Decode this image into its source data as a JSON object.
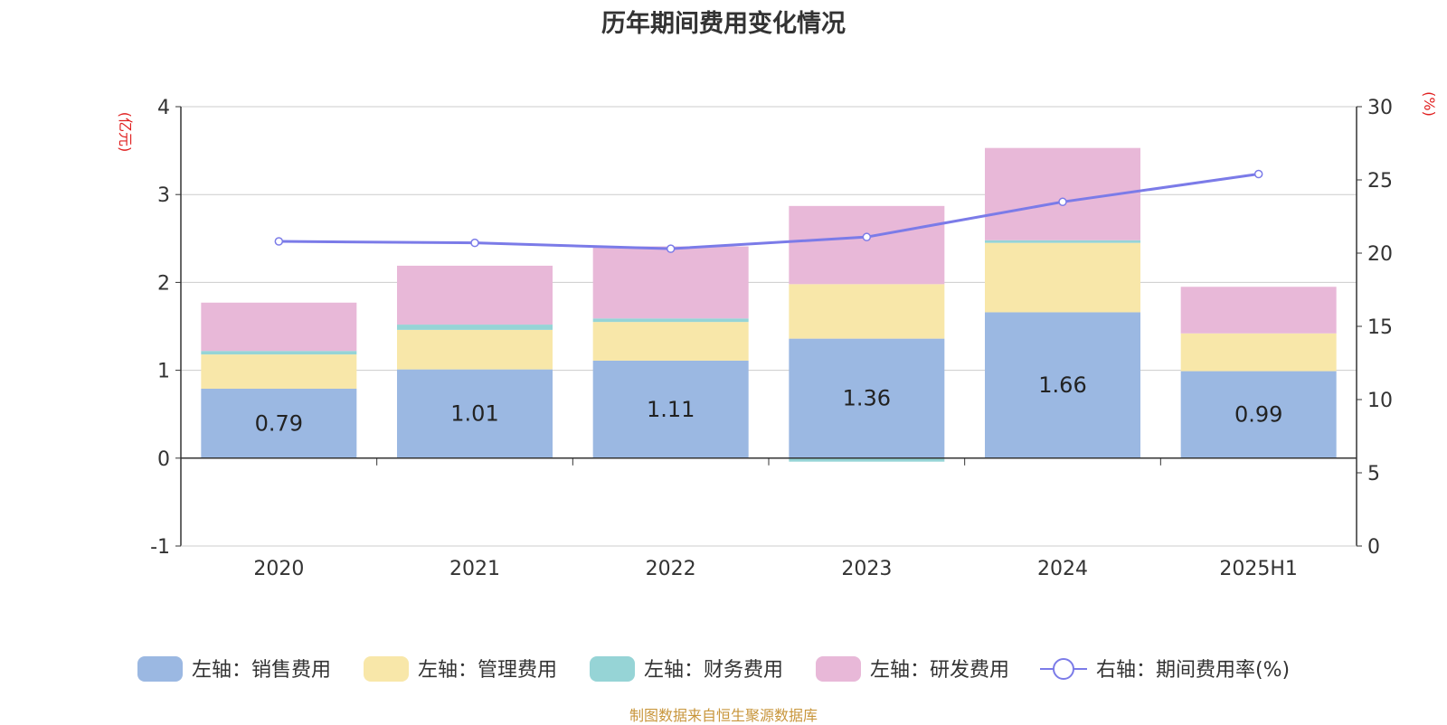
{
  "chart_data": {
    "type": "bar",
    "title": "历年期间费用变化情况",
    "categories": [
      "2020",
      "2021",
      "2022",
      "2023",
      "2024",
      "2025H1"
    ],
    "stacked": true,
    "y_left": {
      "label": "(亿元)",
      "ticks": [
        "4",
        "3",
        "2",
        "1",
        "0",
        "-1"
      ],
      "ylim": [
        -1,
        4
      ]
    },
    "y_right": {
      "label": "(%)",
      "ticks": [
        "30",
        "25",
        "20",
        "15",
        "10",
        "5",
        "0"
      ],
      "ylim": [
        0,
        30
      ]
    },
    "series": [
      {
        "name": "左轴：销售费用",
        "axis": "left",
        "type": "bar",
        "color": "#9bb8e2",
        "values": [
          0.79,
          1.01,
          1.11,
          1.36,
          1.66,
          0.99
        ],
        "labels": [
          "0.79",
          "1.01",
          "1.11",
          "1.36",
          "1.66",
          "0.99"
        ]
      },
      {
        "name": "左轴：管理费用",
        "axis": "left",
        "type": "bar",
        "color": "#f8e7a9",
        "values": [
          0.39,
          0.45,
          0.44,
          0.62,
          0.79,
          0.43
        ]
      },
      {
        "name": "左轴：财务费用",
        "axis": "left",
        "type": "bar",
        "color": "#96d4d6",
        "values": [
          0.04,
          0.06,
          0.04,
          -0.04,
          0.03,
          0.0
        ]
      },
      {
        "name": "左轴：研发费用",
        "axis": "left",
        "type": "bar",
        "color": "#e8b8d8",
        "values": [
          0.55,
          0.67,
          0.82,
          0.89,
          1.05,
          0.53
        ]
      },
      {
        "name": "右轴：期间费用率(%)",
        "axis": "right",
        "type": "line",
        "color": "#7b7be8",
        "values": [
          20.8,
          20.7,
          20.3,
          21.1,
          23.5,
          25.4
        ]
      }
    ],
    "legend": "bottom",
    "grid": true,
    "source": "制图数据来自恒生聚源数据库"
  }
}
